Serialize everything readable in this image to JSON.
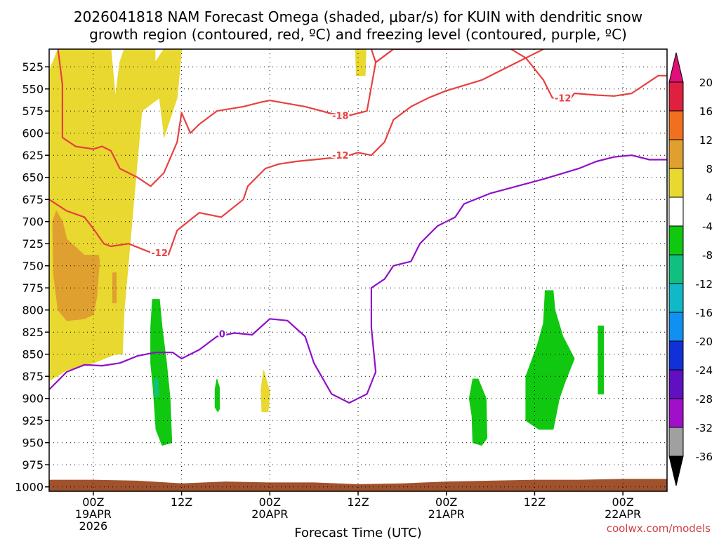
{
  "chart_data": {
    "type": "time-height",
    "title_lines": [
      "2026041818 NAM Forecast Omega (shaded, μbar/s) for KUIN with dendritic snow",
      "growth region (contoured, red, ºC) and freezing level (contoured, purple, ºC)"
    ],
    "xlabel": "Forecast Time (UTC)",
    "credit": "coolwx.com/models",
    "x_unit": "hours after 2026-04-19 00Z",
    "xlim": [
      -5,
      65
    ],
    "ylim": [
      1005,
      505
    ],
    "x_ticks": [
      {
        "x": 0,
        "lines": [
          "00Z",
          "19APR",
          "2026"
        ]
      },
      {
        "x": 10,
        "lines": [
          "12Z"
        ]
      },
      {
        "x": 20,
        "lines": [
          "00Z",
          "20APR"
        ]
      },
      {
        "x": 30,
        "lines": [
          "12Z"
        ]
      },
      {
        "x": 40,
        "lines": [
          "00Z",
          "21APR"
        ]
      },
      {
        "x": 50,
        "lines": [
          "12Z"
        ]
      },
      {
        "x": 60,
        "lines": [
          "00Z",
          "22APR"
        ]
      }
    ],
    "y_ticks": [
      525,
      550,
      575,
      600,
      625,
      650,
      675,
      700,
      725,
      750,
      775,
      800,
      825,
      850,
      875,
      900,
      925,
      950,
      975,
      1000
    ],
    "colorbar": {
      "labels": [
        "20",
        "16",
        "12",
        "8",
        "4",
        "-4",
        "-8",
        "-12",
        "-16",
        "-20",
        "-24",
        "-28",
        "-32",
        "-36"
      ],
      "colors": [
        "#e02040",
        "#f07020",
        "#e0a030",
        "#e8d830",
        "#ffffff",
        "#10c810",
        "#10c080",
        "#10b8c8",
        "#1090f0",
        "#1030d8",
        "#6010c0",
        "#a010c8",
        "#a0a0a0"
      ],
      "top_arrow_color": "#e0107a",
      "bottom_arrow_color": "#000000"
    },
    "shaded_regions": [
      {
        "value": "4 to 8",
        "color": "#e8d830",
        "points": [
          [
            -5,
            530
          ],
          [
            -4,
            505
          ],
          [
            2,
            505
          ],
          [
            2.5,
            560
          ],
          [
            3,
            520
          ],
          [
            3.5,
            505
          ],
          [
            7,
            505
          ],
          [
            7,
            520
          ],
          [
            8,
            505
          ],
          [
            10,
            505
          ],
          [
            9.5,
            560
          ],
          [
            8,
            605
          ],
          [
            8,
            600
          ],
          [
            7.5,
            560
          ],
          [
            5.5,
            575
          ],
          [
            5,
            630
          ],
          [
            3.5,
            800
          ],
          [
            3.3,
            850
          ],
          [
            2.5,
            850
          ],
          [
            0,
            860
          ],
          [
            -3,
            868
          ],
          [
            -5,
            880
          ]
        ]
      },
      {
        "value": "4 to 8",
        "color": "#e8d830",
        "points": [
          [
            29.7,
            505
          ],
          [
            30.9,
            505
          ],
          [
            30.8,
            535
          ],
          [
            29.8,
            535
          ]
        ]
      },
      {
        "value": "4 to 8",
        "color": "#e8d830",
        "points": [
          [
            19.3,
            868
          ],
          [
            20,
            893
          ],
          [
            19.8,
            915
          ],
          [
            19.1,
            915
          ],
          [
            19,
            890
          ]
        ]
      },
      {
        "value": "8 to 12",
        "color": "#e0a030",
        "points": [
          [
            -4.2,
            688
          ],
          [
            -3.5,
            700
          ],
          [
            -3,
            720
          ],
          [
            -1,
            738
          ],
          [
            0.6,
            738
          ],
          [
            0.7,
            745
          ],
          [
            0.4,
            785
          ],
          [
            0,
            805
          ],
          [
            -1,
            810
          ],
          [
            -3,
            812
          ],
          [
            -4,
            800
          ],
          [
            -4.5,
            760
          ],
          [
            -4.6,
            700
          ]
        ]
      },
      {
        "value": "8 to 12",
        "color": "#e0a030",
        "points": [
          [
            2.2,
            758
          ],
          [
            2.6,
            758
          ],
          [
            2.6,
            792
          ],
          [
            2.2,
            792
          ]
        ]
      },
      {
        "value": "-4 to -8",
        "color": "#10c810",
        "points": [
          [
            6.7,
            788
          ],
          [
            7.5,
            788
          ],
          [
            7.8,
            820
          ],
          [
            8.3,
            860
          ],
          [
            8.7,
            900
          ],
          [
            8.9,
            950
          ],
          [
            7.8,
            953
          ],
          [
            7.1,
            935
          ],
          [
            6.8,
            890
          ],
          [
            6.5,
            860
          ],
          [
            6.5,
            820
          ]
        ]
      },
      {
        "value": "-8 to -12",
        "color": "#10c080",
        "points": [
          [
            6.9,
            878
          ],
          [
            7.3,
            878
          ],
          [
            7.4,
            898
          ],
          [
            7,
            898
          ]
        ]
      },
      {
        "value": "-4 to -8",
        "color": "#10c810",
        "points": [
          [
            14,
            878
          ],
          [
            14.3,
            888
          ],
          [
            14.3,
            912
          ],
          [
            14.1,
            915
          ],
          [
            13.8,
            910
          ],
          [
            13.8,
            890
          ]
        ]
      },
      {
        "value": "-4 to -8",
        "color": "#10c810",
        "points": [
          [
            43,
            878
          ],
          [
            43.6,
            878
          ],
          [
            44.5,
            900
          ],
          [
            44.6,
            945
          ],
          [
            44,
            953
          ],
          [
            43,
            950
          ],
          [
            42.9,
            920
          ],
          [
            42.6,
            900
          ]
        ]
      },
      {
        "value": "-4 to -8",
        "color": "#10c810",
        "points": [
          [
            51.2,
            778
          ],
          [
            52.1,
            778
          ],
          [
            52.3,
            800
          ],
          [
            53.2,
            830
          ],
          [
            54.5,
            855
          ],
          [
            53.5,
            880
          ],
          [
            52.8,
            900
          ],
          [
            52.1,
            935
          ],
          [
            50.5,
            935
          ],
          [
            49,
            925
          ],
          [
            49,
            875
          ],
          [
            50.3,
            840
          ],
          [
            51,
            815
          ]
        ]
      },
      {
        "value": "-4 to -8",
        "color": "#10c810",
        "points": [
          [
            57.2,
            818
          ],
          [
            57.8,
            818
          ],
          [
            57.8,
            895
          ],
          [
            57.2,
            895
          ]
        ]
      }
    ],
    "contours": [
      {
        "name": "-18",
        "color": "#e84040",
        "label": "-18",
        "label_at": [
          28,
          580
        ],
        "points": [
          [
            -4,
            505
          ],
          [
            -3.5,
            545
          ],
          [
            -3.5,
            605
          ],
          [
            -2,
            615
          ],
          [
            0,
            618
          ],
          [
            1,
            615
          ],
          [
            2,
            620
          ],
          [
            3,
            640
          ],
          [
            5,
            650
          ],
          [
            6.5,
            660
          ],
          [
            8,
            645
          ],
          [
            9.5,
            610
          ],
          [
            10,
            577
          ],
          [
            11,
            600
          ],
          [
            12,
            590
          ],
          [
            14,
            575
          ],
          [
            17,
            570
          ],
          [
            19,
            565
          ],
          [
            20,
            563
          ],
          [
            24,
            570
          ],
          [
            27,
            578
          ],
          [
            29,
            580
          ],
          [
            31,
            575
          ],
          [
            32,
            520
          ],
          [
            34,
            505
          ]
        ]
      },
      {
        "name": "-12 upper",
        "color": "#e84040",
        "label": "-12",
        "label_at": [
          53.2,
          560
        ],
        "points": [
          [
            31.5,
            505
          ],
          [
            32,
            520
          ],
          [
            34,
            505
          ],
          [
            42,
            505
          ],
          [
            44,
            503
          ],
          [
            47,
            503
          ],
          [
            49,
            515
          ],
          [
            51,
            540
          ],
          [
            52,
            560
          ],
          [
            54,
            562
          ],
          [
            54.5,
            555
          ],
          [
            57,
            557
          ],
          [
            59,
            558
          ],
          [
            61,
            555
          ],
          [
            62.5,
            545
          ],
          [
            64,
            535
          ],
          [
            65,
            535
          ]
        ]
      },
      {
        "name": "-12 lower",
        "color": "#e84040",
        "label": "-12",
        "label_at": [
          7.5,
          735
        ],
        "points": [
          [
            -5,
            675
          ],
          [
            -3,
            688
          ],
          [
            -1,
            695
          ],
          [
            0,
            708
          ],
          [
            1.2,
            725
          ],
          [
            2,
            728
          ],
          [
            4,
            725
          ],
          [
            6,
            733
          ],
          [
            8,
            740
          ],
          [
            8.5,
            738
          ]
        ]
      },
      {
        "name": "-12 middle",
        "color": "#e84040",
        "label": "-12",
        "label_at": [
          28,
          625
        ],
        "points": [
          [
            8.5,
            738
          ],
          [
            9.5,
            710
          ],
          [
            12,
            690
          ],
          [
            14.5,
            695
          ],
          [
            17,
            675
          ],
          [
            17.5,
            660
          ],
          [
            19.5,
            640
          ],
          [
            21,
            635
          ],
          [
            23,
            632
          ],
          [
            25,
            630
          ],
          [
            27,
            628
          ],
          [
            29,
            625
          ],
          [
            30,
            622
          ],
          [
            31.5,
            625
          ],
          [
            33,
            610
          ],
          [
            34,
            585
          ],
          [
            36,
            570
          ],
          [
            38,
            560
          ],
          [
            40,
            552
          ],
          [
            42,
            546
          ],
          [
            44,
            540
          ],
          [
            46,
            530
          ],
          [
            48,
            520
          ],
          [
            50,
            510
          ],
          [
            51,
            505
          ]
        ]
      },
      {
        "name": "0",
        "color": "#9010c8",
        "label": "0",
        "label_at": [
          14.6,
          827
        ],
        "points": [
          [
            -5,
            890
          ],
          [
            -3,
            870
          ],
          [
            -1,
            862
          ],
          [
            1,
            863
          ],
          [
            3,
            860
          ],
          [
            5,
            852
          ],
          [
            7,
            848
          ],
          [
            9,
            848
          ],
          [
            10,
            855
          ],
          [
            12,
            845
          ],
          [
            14,
            830
          ],
          [
            16,
            826
          ],
          [
            18,
            828
          ],
          [
            20,
            810
          ],
          [
            22,
            812
          ],
          [
            24,
            830
          ],
          [
            25,
            860
          ],
          [
            27,
            895
          ],
          [
            29,
            905
          ],
          [
            31,
            895
          ],
          [
            32,
            870
          ],
          [
            31.5,
            820
          ],
          [
            31.5,
            775
          ],
          [
            33,
            765
          ],
          [
            34,
            750
          ],
          [
            36,
            745
          ],
          [
            37,
            725
          ],
          [
            39,
            705
          ],
          [
            41,
            695
          ],
          [
            42,
            680
          ],
          [
            45,
            668
          ],
          [
            48,
            660
          ],
          [
            51,
            652
          ],
          [
            53,
            646
          ],
          [
            55,
            640
          ],
          [
            57,
            632
          ],
          [
            59,
            627
          ],
          [
            61,
            625
          ],
          [
            63,
            630
          ],
          [
            65,
            630
          ]
        ]
      }
    ],
    "ground_level": [
      [
        -5,
        992
      ],
      [
        0,
        992
      ],
      [
        5,
        993
      ],
      [
        10,
        996
      ],
      [
        15,
        994
      ],
      [
        20,
        995
      ],
      [
        25,
        995
      ],
      [
        30,
        997
      ],
      [
        35,
        996
      ],
      [
        40,
        994
      ],
      [
        45,
        993
      ],
      [
        50,
        992
      ],
      [
        55,
        992
      ],
      [
        60,
        991
      ],
      [
        65,
        991
      ]
    ]
  }
}
